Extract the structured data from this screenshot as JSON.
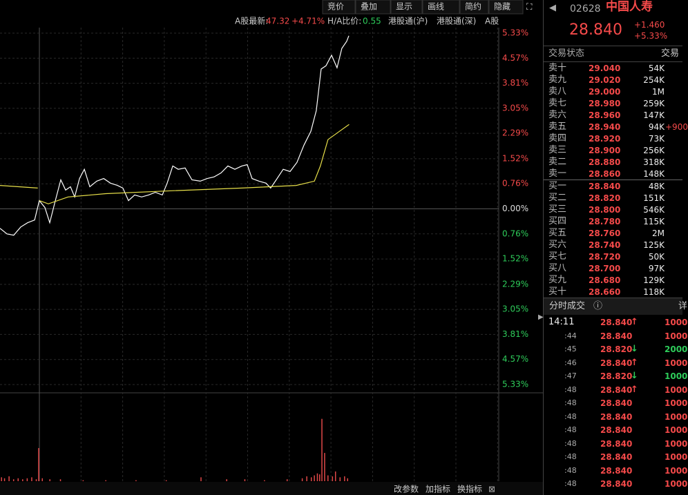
{
  "toolbar": [
    "竞价",
    "叠加",
    "显示",
    "画线",
    "简约",
    "隐藏"
  ],
  "info": {
    "a_label": "A股最新:",
    "a_price": "47.32",
    "a_change": "+4.71%",
    "ha_label": "H/A比价:",
    "ha_value": "0.55",
    "link1": "港股通(沪)",
    "link2": "港股通(深)",
    "link3": "A股"
  },
  "chart_data": [
    {
      "type": "line",
      "xlim": [
        0,
        330
      ],
      "ylim": [
        -5.33,
        5.33
      ],
      "yticks": [
        {
          "value": 5.33,
          "label": "5.33%"
        },
        {
          "value": 4.57,
          "label": "4.57%"
        },
        {
          "value": 3.81,
          "label": "3.81%"
        },
        {
          "value": 3.05,
          "label": "3.05%"
        },
        {
          "value": 2.29,
          "label": "2.29%"
        },
        {
          "value": 1.52,
          "label": "1.52%"
        },
        {
          "value": 0.76,
          "label": "0.76%"
        },
        {
          "value": 0,
          "label": "0.00%"
        },
        {
          "value": -0.76,
          "label": "0.76%"
        },
        {
          "value": -1.52,
          "label": "1.52%"
        },
        {
          "value": -2.29,
          "label": "2.29%"
        },
        {
          "value": -3.05,
          "label": "3.05%"
        },
        {
          "value": -3.81,
          "label": "3.81%"
        },
        {
          "value": -4.57,
          "label": "4.57%"
        },
        {
          "value": -5.33,
          "label": "5.33%"
        }
      ],
      "series": [
        {
          "color": "#ffffff",
          "x": [
            0,
            4.6,
            9.1,
            13.7,
            18.3,
            22.9,
            26,
            29.7,
            32.9,
            36.6,
            40.2,
            43.4,
            46.6,
            49.4,
            52.6,
            55.8,
            59.4,
            64,
            68.6,
            73.1,
            77.7,
            81.3,
            85,
            89.1,
            93.7,
            98.3,
            102.8,
            107.4,
            110.6,
            114.3,
            117.9,
            122.5,
            127,
            132.5,
            137.1,
            141.7,
            146.2,
            150.8,
            155.4,
            160,
            163.6,
            166.8,
            171.4,
            176,
            179.1,
            182.8,
            187.4,
            191.9,
            196.5,
            201.1,
            205.7,
            209.3,
            212.5,
            215.7,
            219.4,
            223,
            226.2,
            229.4,
            230.8
          ],
          "values": [
            -0.59,
            -0.76,
            -0.8,
            -0.55,
            -0.42,
            -0.34,
            0.25,
            0.04,
            -0.42,
            0.25,
            0.88,
            0.57,
            0.67,
            0.36,
            0.92,
            1.2,
            0.67,
            0.84,
            0.92,
            0.78,
            0.71,
            0.63,
            0.25,
            0.42,
            0.36,
            0.42,
            0.5,
            0.42,
            0.78,
            1.3,
            1.2,
            1.24,
            0.88,
            0.84,
            0.92,
            0.97,
            1.09,
            1.3,
            1.2,
            1.3,
            1.34,
            0.92,
            0.84,
            0.78,
            0.63,
            0.88,
            1.2,
            1.13,
            1.41,
            1.93,
            2.35,
            2.98,
            4.24,
            4.34,
            4.66,
            4.28,
            4.87,
            5.08,
            5.25
          ]
        },
        {
          "color": "#e8e04a",
          "x": [
            0,
            25,
            25.5,
            26,
            32,
            45,
            70,
            115,
            160,
            196,
            208,
            212,
            217,
            224,
            231
          ],
          "values": [
            0.71,
            0.63,
            null,
            0.25,
            0.15,
            0.36,
            0.46,
            0.55,
            0.63,
            0.71,
            0.84,
            1.3,
            2.1,
            2.33,
            2.56
          ]
        }
      ]
    },
    {
      "type": "bar",
      "xlim": [
        0,
        330
      ],
      "ylim": [
        0,
        90
      ],
      "color": "#e04848",
      "x": [
        1,
        3,
        6,
        9,
        12,
        15,
        18,
        21,
        24,
        25.6,
        28,
        33,
        40,
        55,
        70,
        90,
        110,
        133,
        150,
        162,
        175,
        190,
        200,
        203,
        206,
        208,
        210,
        211.5,
        213,
        214.8,
        217,
        220,
        222,
        225,
        228,
        230
      ],
      "values": [
        4,
        3,
        5,
        2,
        3,
        2,
        3,
        4,
        2,
        34,
        3,
        2,
        2,
        1,
        1,
        1,
        1,
        4,
        2,
        2,
        1,
        2,
        3,
        5,
        4,
        6,
        8,
        7,
        64,
        29,
        6,
        5,
        10,
        4,
        5,
        3
      ]
    }
  ],
  "bottom_buttons": [
    "改参数",
    "加指标",
    "换指标"
  ],
  "quote": {
    "code": "02628",
    "name": "中国人寿",
    "price": "28.840",
    "change": "+1.460",
    "change_pct": "+5.33%"
  },
  "book": {
    "status": "交易状态",
    "status2": "交易",
    "asks": [
      [
        "卖十",
        "29.040",
        "54K"
      ],
      [
        "卖九",
        "29.020",
        "254K"
      ],
      [
        "卖八",
        "29.000",
        "1M"
      ],
      [
        "卖七",
        "28.980",
        "259K"
      ],
      [
        "卖六",
        "28.960",
        "147K"
      ],
      [
        "卖五",
        "28.940",
        "94K"
      ],
      [
        "卖四",
        "28.920",
        "73K"
      ],
      [
        "卖三",
        "28.900",
        "256K"
      ],
      [
        "卖二",
        "28.880",
        "318K"
      ],
      [
        "卖一",
        "28.860",
        "148K"
      ]
    ],
    "ask_extra": "+900",
    "bids": [
      [
        "买一",
        "28.840",
        "48K"
      ],
      [
        "买二",
        "28.820",
        "151K"
      ],
      [
        "买三",
        "28.800",
        "546K"
      ],
      [
        "买四",
        "28.780",
        "115K"
      ],
      [
        "买五",
        "28.760",
        "2M"
      ],
      [
        "买六",
        "28.740",
        "125K"
      ],
      [
        "买七",
        "28.720",
        "50K"
      ],
      [
        "买八",
        "28.700",
        "97K"
      ],
      [
        "买九",
        "28.680",
        "129K"
      ],
      [
        "买十",
        "28.660",
        "118K"
      ]
    ]
  },
  "trades": {
    "title": "分时成交",
    "more": "详",
    "rows": [
      [
        "14:11",
        "28.840",
        "↑",
        "1000"
      ],
      [
        ":44",
        "28.840",
        "",
        "1000"
      ],
      [
        ":45",
        "28.820",
        "↓",
        "2000"
      ],
      [
        ":46",
        "28.840",
        "↑",
        "1000"
      ],
      [
        ":47",
        "28.820",
        "↓",
        "1000"
      ],
      [
        ":48",
        "28.840",
        "↑",
        "1000"
      ],
      [
        ":48",
        "28.840",
        "",
        "1000"
      ],
      [
        ":48",
        "28.840",
        "",
        "1000"
      ],
      [
        ":48",
        "28.840",
        "",
        "1000"
      ],
      [
        ":48",
        "28.840",
        "",
        "1000"
      ],
      [
        ":48",
        "28.840",
        "",
        "1000"
      ],
      [
        ":48",
        "28.840",
        "",
        "1000"
      ],
      [
        ":48",
        "28.840",
        "",
        "1000"
      ]
    ]
  }
}
